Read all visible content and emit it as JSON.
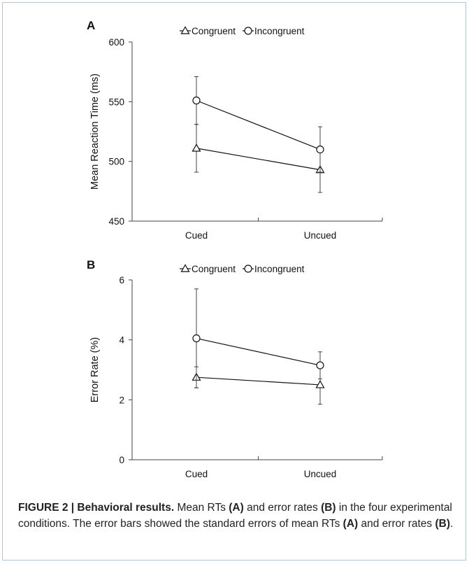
{
  "figure": {
    "caption": {
      "figure_label": "FIGURE 2 | Behavioral results.",
      "text_1": " Mean RTs ",
      "ref_a1": "(A)",
      "text_2": " and error rates ",
      "ref_b1": "(B)",
      "text_3": " in the four experimental conditions. The error bars showed the standard errors of mean RTs ",
      "ref_a2": "(A)",
      "text_4": " and error rates ",
      "ref_b2": "(B)",
      "text_5": "."
    }
  },
  "chart_data": [
    {
      "type": "line",
      "panel_label": "A",
      "ylabel": "Mean Reaction Time (ms)",
      "xlabel": "",
      "categories": [
        "Cued",
        "Uncued"
      ],
      "ylim": [
        450,
        600
      ],
      "yticks": [
        450,
        500,
        550,
        600
      ],
      "legend_position": "top",
      "grid": false,
      "series": [
        {
          "name": "Congruent",
          "marker": "triangle",
          "values": [
            511,
            493
          ],
          "errors": [
            20,
            19
          ]
        },
        {
          "name": "Incongruent",
          "marker": "circle",
          "values": [
            551,
            510
          ],
          "errors": [
            20,
            19
          ]
        }
      ]
    },
    {
      "type": "line",
      "panel_label": "B",
      "ylabel": "Error Rate (%)",
      "xlabel": "",
      "categories": [
        "Cued",
        "Uncued"
      ],
      "ylim": [
        0,
        6
      ],
      "yticks": [
        0,
        2,
        4,
        6
      ],
      "legend_position": "top",
      "grid": false,
      "series": [
        {
          "name": "Congruent",
          "marker": "triangle",
          "values": [
            2.75,
            2.5
          ],
          "errors": [
            0.35,
            0.65
          ]
        },
        {
          "name": "Incongruent",
          "marker": "circle",
          "values": [
            4.05,
            3.15
          ],
          "errors": [
            1.65,
            0.45
          ]
        }
      ]
    }
  ]
}
